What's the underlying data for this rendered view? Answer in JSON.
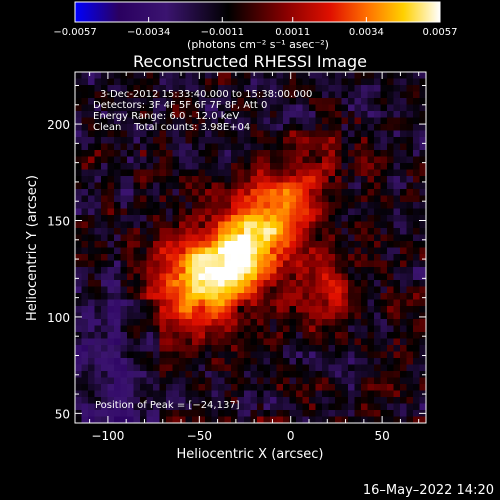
{
  "chart_data": {
    "type": "heatmap",
    "title": "Reconstructed RHESSI Image",
    "xlabel": "Heliocentric X (arcsec)",
    "ylabel": "Heliocentric Y (arcsec)",
    "xlim": [
      -118,
      74
    ],
    "ylim": [
      45,
      227
    ],
    "x_ticks": [
      -100,
      -50,
      0,
      50
    ],
    "x_tick_labels": [
      "−100",
      "−50",
      "0",
      "50"
    ],
    "y_ticks": [
      50,
      100,
      150,
      200
    ],
    "y_tick_labels": [
      "50",
      "100",
      "150",
      "200"
    ],
    "colorbar": {
      "range": [
        -0.0057,
        0.0057
      ],
      "ticks": [
        -0.0057,
        -0.0034,
        -0.0011,
        0.0011,
        0.0034,
        0.0057
      ],
      "tick_labels": [
        "−0.0057",
        "−0.0034",
        "−0.0011",
        "0.0011",
        "0.0034",
        "0.0057"
      ],
      "units": "(photons cm⁻² s⁻¹ asec⁻²)",
      "colormap": [
        "#0000ff",
        "#2a0060",
        "#3b1470",
        "#000000",
        "#8a0000",
        "#e01000",
        "#ff7000",
        "#ffd000",
        "#ffffff"
      ]
    },
    "annotations": {
      "time": "3-Dec-2012 15:33:40.000 to 15:38:00.000",
      "detectors": "Detectors: 3F 4F 5F 6F 7F 8F, Att 0",
      "energy": "Energy Range: 6.0 - 12.0 keV",
      "clean": "Clean    Total counts: 3.98E+04",
      "peak": "Position of Peak = [−24,137]"
    },
    "peak_position": [
      -24,
      137
    ],
    "grid": false
  },
  "footer": {
    "timestamp": "16–May–2022 14:20"
  },
  "colors": {
    "background": "#000000",
    "foreground": "#ffffff"
  }
}
